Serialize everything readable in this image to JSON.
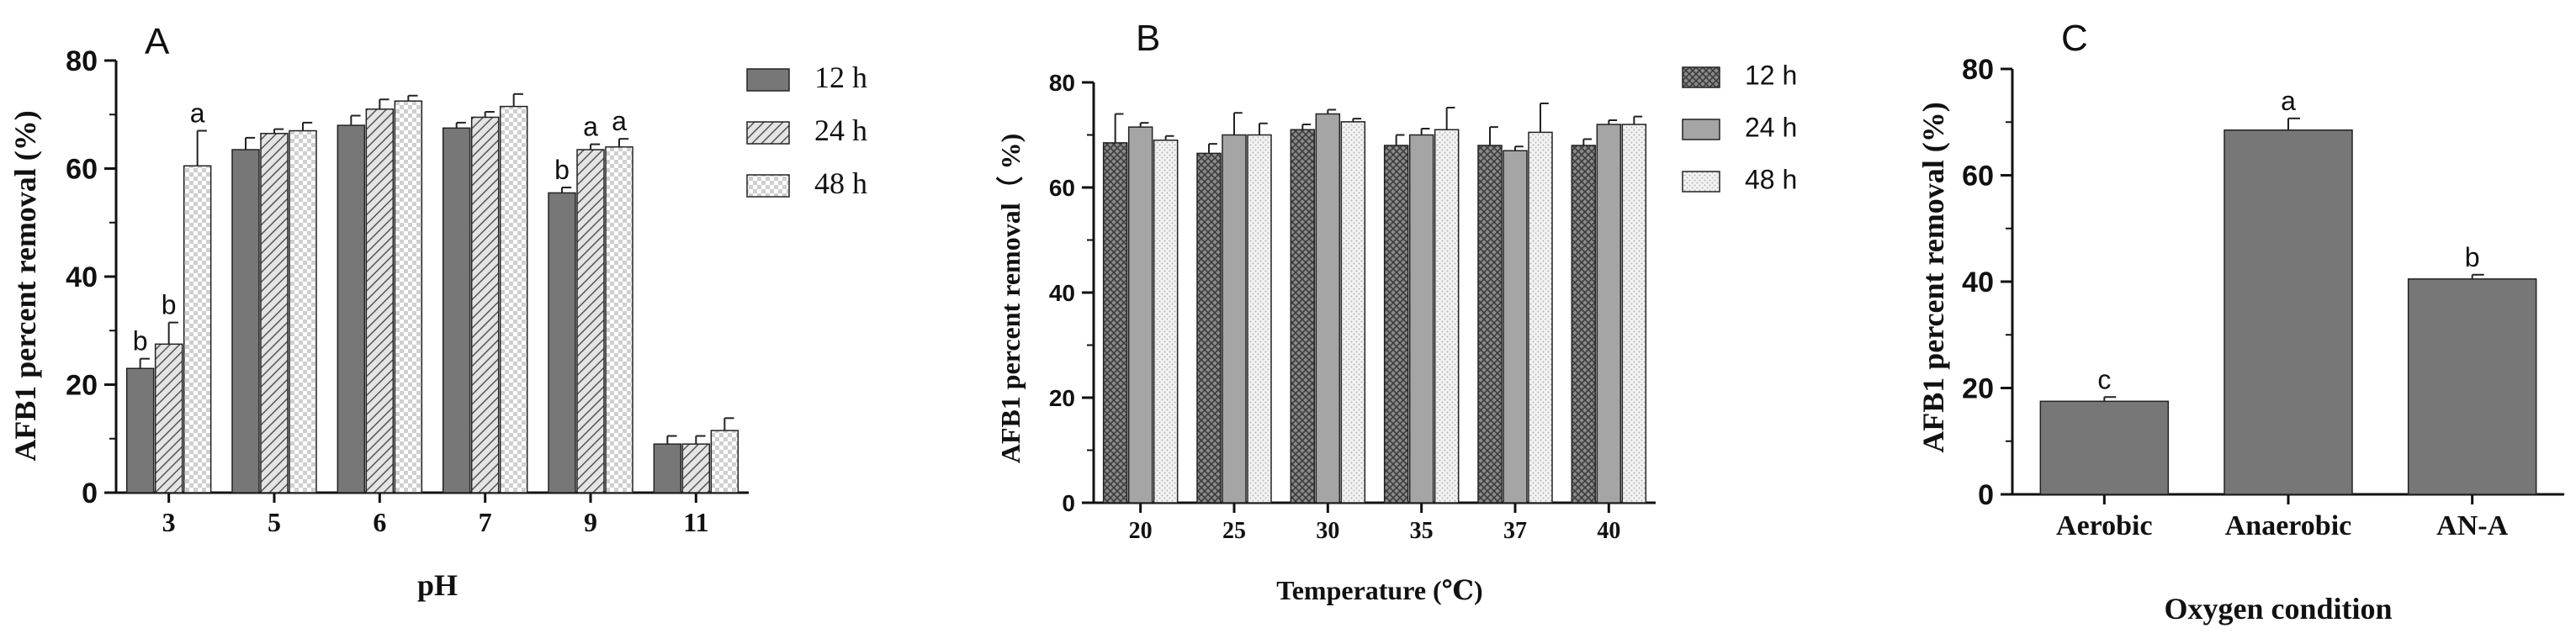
{
  "chart_data": [
    {
      "panel_label": "A",
      "type": "bar",
      "title": "",
      "xlabel": "pH",
      "ylabel": "AFB1 percent removal (%)",
      "ylim": [
        0,
        80
      ],
      "yticks": [
        0,
        20,
        40,
        60,
        80
      ],
      "categories": [
        "3",
        "5",
        "6",
        "7",
        "9",
        "11"
      ],
      "legend_position": "top-right",
      "series": [
        {
          "name": "12 h",
          "pattern": "solid-gray",
          "values": [
            23,
            63.5,
            68,
            67.5,
            55.5,
            9
          ],
          "errors": [
            1.8,
            2.2,
            1.8,
            1.0,
            1.0,
            1.5
          ],
          "labels": [
            "b",
            "",
            "",
            "",
            "b",
            ""
          ]
        },
        {
          "name": "24 h",
          "pattern": "diagonal",
          "values": [
            27.5,
            66.5,
            71,
            69.5,
            63.5,
            9
          ],
          "errors": [
            4.0,
            0.8,
            1.8,
            1.0,
            1.0,
            1.5
          ],
          "labels": [
            "b",
            "",
            "",
            "",
            "a",
            ""
          ]
        },
        {
          "name": "48 h",
          "pattern": "checker",
          "values": [
            60.5,
            67,
            72.5,
            71.5,
            64,
            11.5
          ],
          "errors": [
            6.5,
            1.5,
            1.0,
            2.3,
            1.5,
            2.3
          ],
          "labels": [
            "a",
            "",
            "",
            "",
            "a",
            ""
          ]
        }
      ]
    },
    {
      "panel_label": "B",
      "type": "bar",
      "title": "",
      "xlabel": "Temperature (℃)",
      "ylabel": "AFB1 percent removal（ %)",
      "ylim": [
        0,
        80
      ],
      "yticks": [
        0,
        20,
        40,
        60,
        80
      ],
      "categories": [
        "20",
        "25",
        "30",
        "35",
        "37",
        "40"
      ],
      "legend_position": "top-right",
      "series": [
        {
          "name": "12 h",
          "pattern": "crosshatch",
          "values": [
            68.5,
            66.5,
            71,
            68,
            68,
            68
          ],
          "errors": [
            5.5,
            1.8,
            1.0,
            2.0,
            3.5,
            1.2
          ]
        },
        {
          "name": "24 h",
          "pattern": "solid-gray",
          "values": [
            71.5,
            70,
            74,
            70,
            67,
            72
          ],
          "errors": [
            0.8,
            4.2,
            0.8,
            1.2,
            0.8,
            0.8
          ]
        },
        {
          "name": "48 h",
          "pattern": "dots",
          "values": [
            69,
            70,
            72.5,
            71,
            70.5,
            72
          ],
          "errors": [
            0.8,
            2.2,
            0.6,
            4.2,
            5.5,
            1.5
          ]
        }
      ]
    },
    {
      "panel_label": "C",
      "type": "bar",
      "title": "",
      "xlabel": "Oxygen condition",
      "ylabel": "AFB1 percent removal (%)",
      "ylim": [
        0,
        80
      ],
      "yticks": [
        0,
        20,
        40,
        60,
        80
      ],
      "categories": [
        "Aerobic",
        "Anaerobic",
        "AN-A"
      ],
      "series": [
        {
          "name": "removal",
          "pattern": "solid-gray",
          "values": [
            17.5,
            68.5,
            40.5
          ],
          "errors": [
            0.8,
            2.2,
            0.8
          ],
          "labels": [
            "c",
            "a",
            "b"
          ]
        }
      ]
    }
  ]
}
